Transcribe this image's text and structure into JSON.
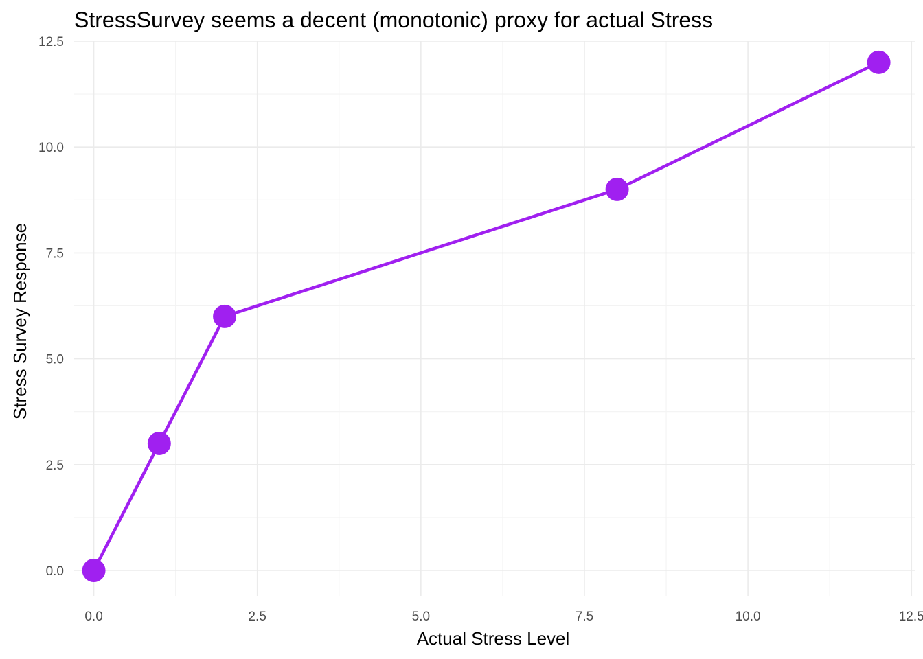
{
  "chart_data": {
    "type": "line",
    "title": "StressSurvey seems a decent (monotonic) proxy for actual Stress",
    "xlabel": "Actual Stress Level",
    "ylabel": "Stress Survey Response",
    "xlim": [
      -0.3,
      12.55
    ],
    "ylim": [
      -0.6,
      12.5
    ],
    "x_ticks": [
      0,
      2.5,
      5,
      7.5,
      10,
      12.5
    ],
    "y_ticks": [
      0,
      2.5,
      5,
      7.5,
      10,
      12.5
    ],
    "x_tick_labels": [
      "0.0",
      "2.5",
      "5.0",
      "7.5",
      "10.0",
      "12.5"
    ],
    "y_tick_labels": [
      "0.0",
      "2.5",
      "5.0",
      "7.5",
      "10.0",
      "12.5"
    ],
    "grid": true,
    "legend": "none",
    "series": [
      {
        "x": [
          0,
          1,
          2,
          8,
          12
        ],
        "y": [
          0,
          3,
          6,
          9,
          12
        ],
        "color": "#a020f0",
        "markers": true
      }
    ]
  }
}
